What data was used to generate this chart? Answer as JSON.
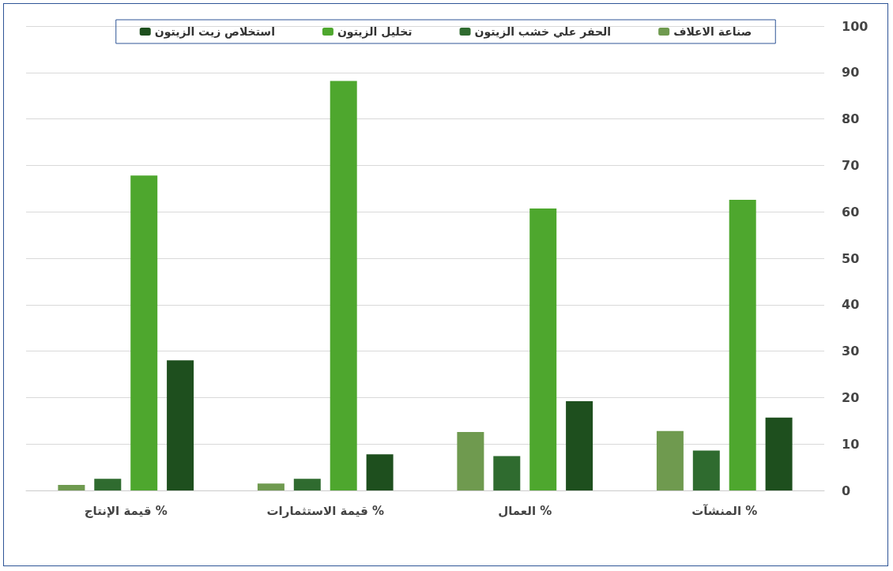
{
  "chart_data": {
    "type": "bar",
    "categories": [
      "قيمة الإنتاج %",
      "قيمة الاستثمارات %",
      "العمال %",
      "المنشآت %"
    ],
    "series": [
      {
        "name": "صناعة الاعلاف",
        "color": "#6f9a4f",
        "values": [
          1.2,
          1.5,
          12.6,
          12.8
        ]
      },
      {
        "name": "الحفر علي خشب الزيتون",
        "color": "#2f6b2f",
        "values": [
          2.5,
          2.5,
          7.4,
          8.6
        ]
      },
      {
        "name": "تخليل الزيتون",
        "color": "#4ea72e",
        "values": [
          67.8,
          88.2,
          60.7,
          62.6
        ]
      },
      {
        "name": "استخلاص زيت الزيتون",
        "color": "#1e4f1e",
        "values": [
          28,
          7.8,
          19.2,
          15.7
        ]
      }
    ],
    "ylim": [
      0,
      100
    ],
    "yticks": [
      0,
      10,
      20,
      30,
      40,
      50,
      60,
      70,
      80,
      90,
      100
    ],
    "grid": "y",
    "legend": "top"
  }
}
